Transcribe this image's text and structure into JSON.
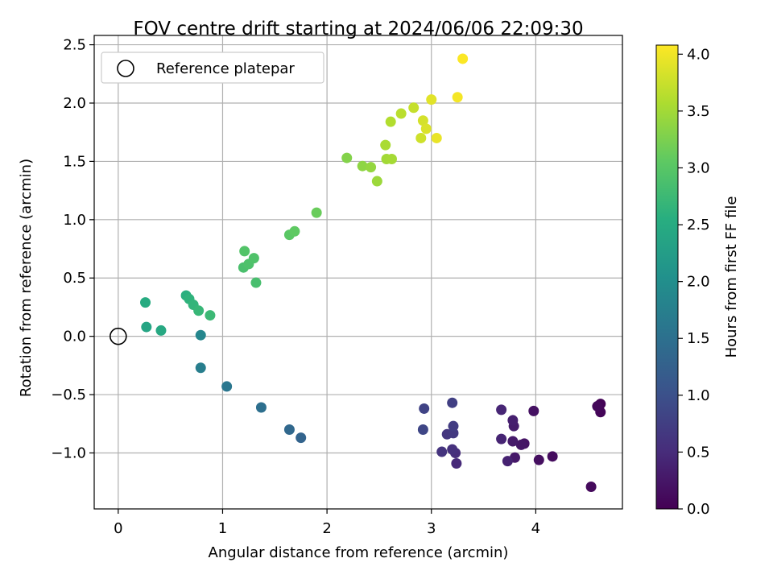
{
  "chart_data": {
    "type": "scatter",
    "title": "FOV centre drift starting at 2024/06/06 22:09:30",
    "xlabel": "Angular distance from reference (arcmin)",
    "ylabel": "Rotation from reference (arcmin)",
    "xlim": [
      -0.23,
      4.83
    ],
    "ylim": [
      -1.48,
      2.58
    ],
    "xticks": [
      0,
      1,
      2,
      3,
      4
    ],
    "xtick_labels": [
      "0",
      "1",
      "2",
      "3",
      "4"
    ],
    "yticks": [
      -1.0,
      -0.5,
      0.0,
      0.5,
      1.0,
      1.5,
      2.0,
      2.5
    ],
    "ytick_labels": [
      "−1.0",
      "−0.5",
      "0.0",
      "0.5",
      "1.0",
      "1.5",
      "2.0",
      "2.5"
    ],
    "grid": true,
    "legend": {
      "position": "upper-left",
      "label": "Reference platepar"
    },
    "reference_point": {
      "x": 0,
      "y": 0
    },
    "colorbar": {
      "label": "Hours from first FF file",
      "colormap": "viridis",
      "range": [
        0.0,
        4.08
      ],
      "ticks": [
        0.0,
        0.5,
        1.0,
        1.5,
        2.0,
        2.5,
        3.0,
        3.5,
        4.0
      ],
      "tick_labels": [
        "0.0",
        "0.5",
        "1.0",
        "1.5",
        "2.0",
        "2.5",
        "3.0",
        "3.5",
        "4.0"
      ]
    },
    "points": [
      {
        "x": 4.62,
        "y": -0.58,
        "c": 0.02
      },
      {
        "x": 4.62,
        "y": -0.65,
        "c": 0.05
      },
      {
        "x": 4.59,
        "y": -0.6,
        "c": 0.08
      },
      {
        "x": 4.53,
        "y": -1.29,
        "c": 0.1
      },
      {
        "x": 4.16,
        "y": -1.03,
        "c": 0.13
      },
      {
        "x": 4.03,
        "y": -1.06,
        "c": 0.16
      },
      {
        "x": 3.98,
        "y": -0.64,
        "c": 0.18
      },
      {
        "x": 3.89,
        "y": -0.92,
        "c": 0.21
      },
      {
        "x": 3.86,
        "y": -0.93,
        "c": 0.24
      },
      {
        "x": 3.8,
        "y": -1.04,
        "c": 0.27
      },
      {
        "x": 3.78,
        "y": -0.9,
        "c": 0.29
      },
      {
        "x": 3.79,
        "y": -0.77,
        "c": 0.32
      },
      {
        "x": 3.78,
        "y": -0.72,
        "c": 0.35
      },
      {
        "x": 3.73,
        "y": -1.07,
        "c": 0.38
      },
      {
        "x": 3.67,
        "y": -0.88,
        "c": 0.4
      },
      {
        "x": 3.67,
        "y": -0.63,
        "c": 0.43
      },
      {
        "x": 3.24,
        "y": -1.09,
        "c": 0.48
      },
      {
        "x": 3.23,
        "y": -1.0,
        "c": 0.52
      },
      {
        "x": 3.2,
        "y": -0.97,
        "c": 0.56
      },
      {
        "x": 3.1,
        "y": -0.99,
        "c": 0.6
      },
      {
        "x": 3.15,
        "y": -0.84,
        "c": 0.64
      },
      {
        "x": 3.21,
        "y": -0.83,
        "c": 0.68
      },
      {
        "x": 3.21,
        "y": -0.77,
        "c": 0.72
      },
      {
        "x": 3.2,
        "y": -0.57,
        "c": 0.76
      },
      {
        "x": 2.93,
        "y": -0.62,
        "c": 0.82
      },
      {
        "x": 2.92,
        "y": -0.8,
        "c": 0.86
      },
      {
        "x": 1.75,
        "y": -0.87,
        "c": 1.3
      },
      {
        "x": 1.64,
        "y": -0.8,
        "c": 1.37
      },
      {
        "x": 1.37,
        "y": -0.61,
        "c": 1.48
      },
      {
        "x": 1.04,
        "y": -0.43,
        "c": 1.6
      },
      {
        "x": 0.79,
        "y": -0.27,
        "c": 1.72
      },
      {
        "x": 0.79,
        "y": 0.01,
        "c": 1.86
      },
      {
        "x": 0.27,
        "y": 0.08,
        "c": 2.4
      },
      {
        "x": 0.41,
        "y": 0.05,
        "c": 2.45
      },
      {
        "x": 0.26,
        "y": 0.29,
        "c": 2.5
      },
      {
        "x": 0.65,
        "y": 0.35,
        "c": 2.57
      },
      {
        "x": 0.68,
        "y": 0.32,
        "c": 2.62
      },
      {
        "x": 0.72,
        "y": 0.27,
        "c": 2.66
      },
      {
        "x": 0.77,
        "y": 0.22,
        "c": 2.7
      },
      {
        "x": 0.88,
        "y": 0.18,
        "c": 2.74
      },
      {
        "x": 1.32,
        "y": 0.46,
        "c": 2.86
      },
      {
        "x": 1.2,
        "y": 0.59,
        "c": 2.88
      },
      {
        "x": 1.25,
        "y": 0.62,
        "c": 2.91
      },
      {
        "x": 1.3,
        "y": 0.67,
        "c": 2.93
      },
      {
        "x": 1.21,
        "y": 0.73,
        "c": 2.95
      },
      {
        "x": 1.64,
        "y": 0.87,
        "c": 3.02
      },
      {
        "x": 1.69,
        "y": 0.9,
        "c": 3.06
      },
      {
        "x": 1.9,
        "y": 1.06,
        "c": 3.13
      },
      {
        "x": 2.19,
        "y": 1.53,
        "c": 3.3
      },
      {
        "x": 2.34,
        "y": 1.46,
        "c": 3.37
      },
      {
        "x": 2.42,
        "y": 1.45,
        "c": 3.41
      },
      {
        "x": 2.48,
        "y": 1.33,
        "c": 3.46
      },
      {
        "x": 2.57,
        "y": 1.52,
        "c": 3.5
      },
      {
        "x": 2.62,
        "y": 1.52,
        "c": 3.52
      },
      {
        "x": 2.56,
        "y": 1.64,
        "c": 3.55
      },
      {
        "x": 2.61,
        "y": 1.84,
        "c": 3.6
      },
      {
        "x": 2.71,
        "y": 1.91,
        "c": 3.65
      },
      {
        "x": 2.83,
        "y": 1.96,
        "c": 3.72
      },
      {
        "x": 2.9,
        "y": 1.7,
        "c": 3.78
      },
      {
        "x": 2.92,
        "y": 1.85,
        "c": 3.82
      },
      {
        "x": 2.95,
        "y": 1.78,
        "c": 3.86
      },
      {
        "x": 3.0,
        "y": 2.03,
        "c": 3.9
      },
      {
        "x": 3.05,
        "y": 1.7,
        "c": 3.95
      },
      {
        "x": 3.25,
        "y": 2.05,
        "c": 4.02
      },
      {
        "x": 3.3,
        "y": 2.38,
        "c": 4.07
      }
    ]
  }
}
